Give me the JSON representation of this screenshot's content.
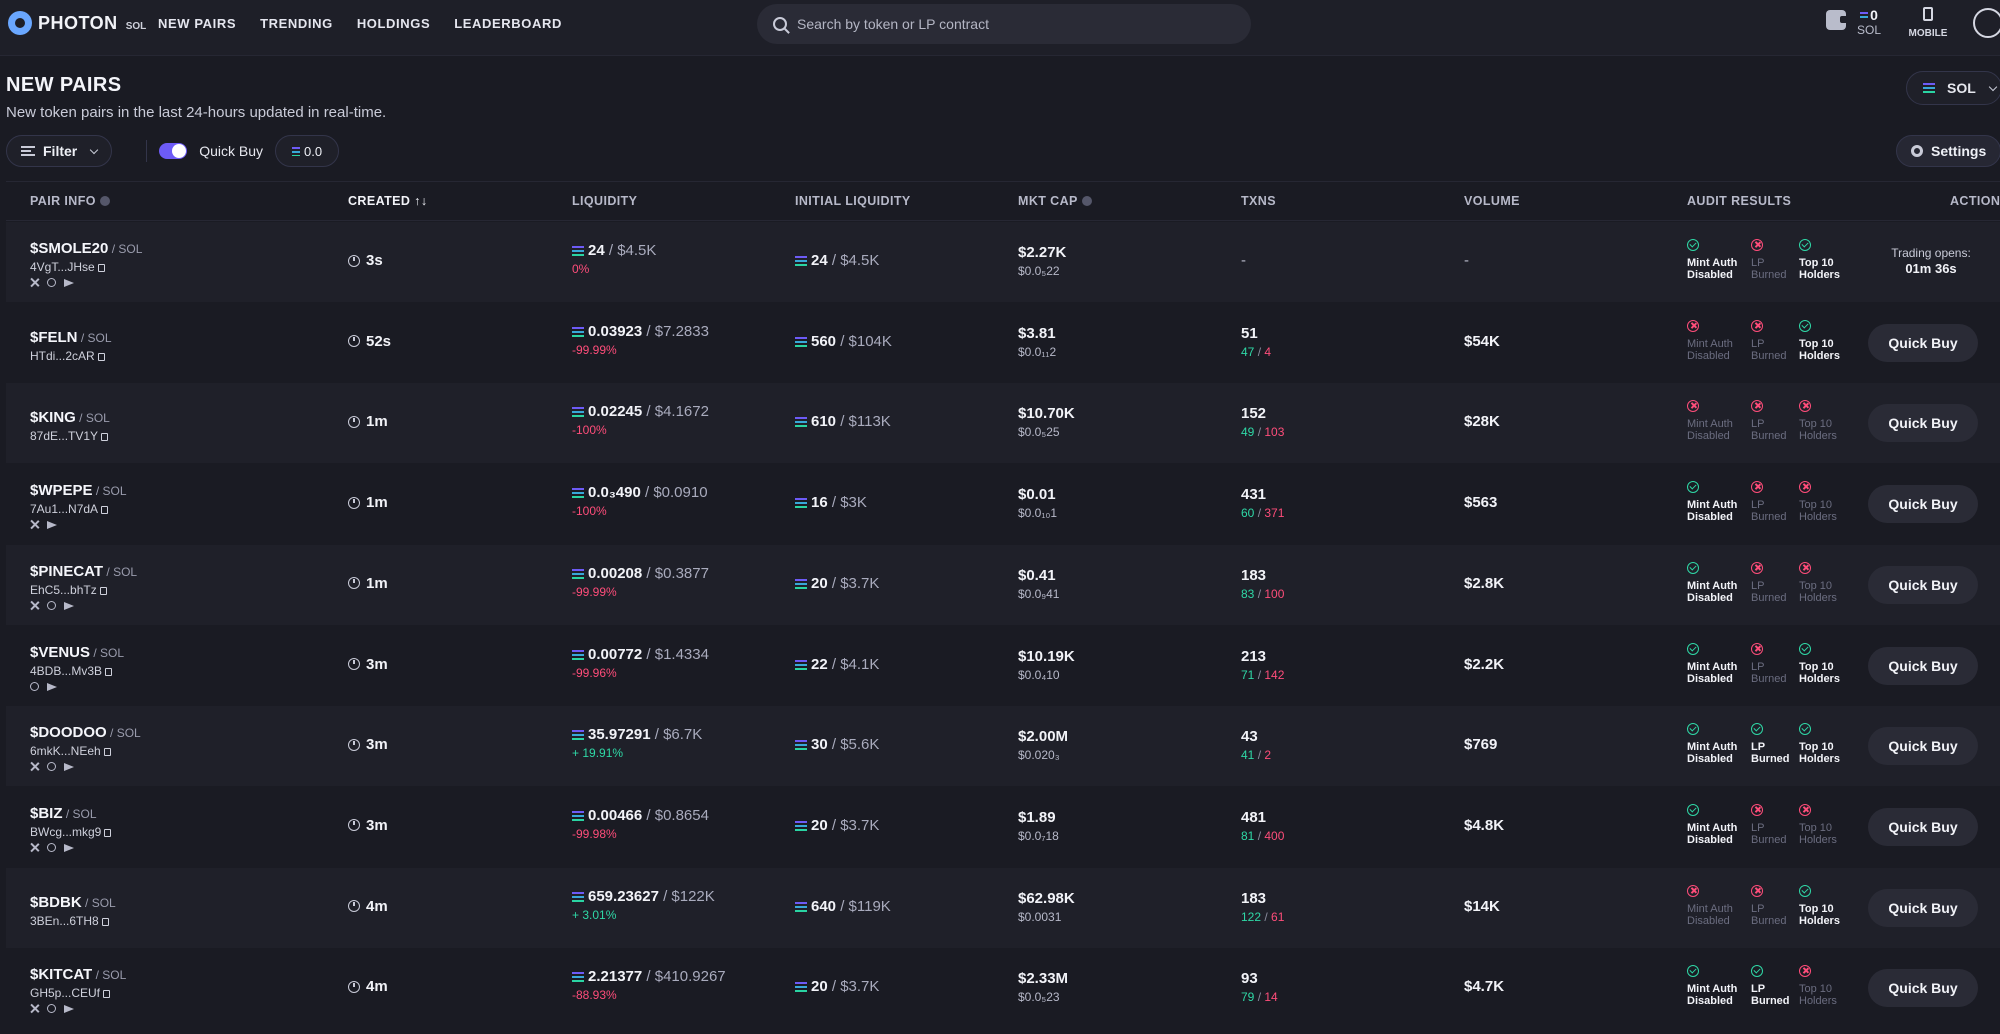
{
  "app": {
    "logo_text": "PHOTON",
    "logo_sub": "SOL"
  },
  "nav": [
    "NEW PAIRS",
    "TRENDING",
    "HOLDINGS",
    "LEADERBOARD"
  ],
  "search": {
    "placeholder": "Search by token or LP contract"
  },
  "wallet": {
    "balance": "0",
    "unit": "SOL"
  },
  "mobile_label": "MOBILE",
  "page": {
    "title": "NEW PAIRS",
    "description": "New token pairs in the last 24-hours updated in real-time.",
    "chain": "SOL"
  },
  "toolbar": {
    "filter_label": "Filter",
    "quick_buy_label": "Quick Buy",
    "quick_buy_amount": "0.0",
    "settings_label": "Settings"
  },
  "columns": {
    "pair_info": "PAIR INFO",
    "created": "CREATED",
    "created_sort": "↑↓",
    "liquidity": "LIQUIDITY",
    "initial_liquidity": "INITIAL LIQUIDITY",
    "mkt_cap": "MKT CAP",
    "txns": "TXNS",
    "volume": "VOLUME",
    "audit": "AUDIT RESULTS",
    "action": "ACTION"
  },
  "audit_labels": {
    "mint": [
      "Mint Auth",
      "Disabled"
    ],
    "lp": [
      "LP",
      "Burned"
    ],
    "top10": [
      "Top 10",
      "Holders"
    ]
  },
  "action_label": "Quick Buy",
  "rows": [
    {
      "name": "$SMOLE20",
      "quote": "/ SOL",
      "addr": "4VgT...JHse",
      "socials": [
        "x",
        "web",
        "tg"
      ],
      "created": "3s",
      "liq": "24",
      "liq_usd": "/ $4.5K",
      "liq_pct": "0%",
      "liq_pct_sign": "neg",
      "init": "24",
      "init_usd": "/ $4.5K",
      "mc": "$2.27K",
      "mc_price": "$0.0₅22",
      "txns": "-",
      "buys": "",
      "sells": "",
      "volume": "-",
      "audit": [
        "ok",
        "bad",
        "ok"
      ],
      "action": "trading",
      "trading_label": "Trading opens:",
      "trading_time": "01m 36s"
    },
    {
      "name": "$FELN",
      "quote": "/ SOL",
      "addr": "HTdi...2cAR",
      "socials": [],
      "created": "52s",
      "liq": "0.03923",
      "liq_usd": "/ $7.2833",
      "liq_pct": "-99.99%",
      "liq_pct_sign": "neg",
      "init": "560",
      "init_usd": "/ $104K",
      "mc": "$3.81",
      "mc_price": "$0.0₁₁2",
      "txns": "51",
      "buys": "47",
      "sells": "4",
      "volume": "$54K",
      "audit": [
        "bad",
        "bad",
        "ok"
      ],
      "action": "buy"
    },
    {
      "name": "$KING",
      "quote": "/ SOL",
      "addr": "87dE...TV1Y",
      "socials": [],
      "created": "1m",
      "liq": "0.02245",
      "liq_usd": "/ $4.1672",
      "liq_pct": "-100%",
      "liq_pct_sign": "neg",
      "init": "610",
      "init_usd": "/ $113K",
      "mc": "$10.70K",
      "mc_price": "$0.0₅25",
      "txns": "152",
      "buys": "49",
      "sells": "103",
      "volume": "$28K",
      "audit": [
        "bad",
        "bad",
        "bad"
      ],
      "action": "buy"
    },
    {
      "name": "$WPEPE",
      "quote": "/ SOL",
      "addr": "7Au1...N7dA",
      "socials": [
        "x",
        "tg"
      ],
      "created": "1m",
      "liq": "0.0₃490",
      "liq_usd": "/ $0.0910",
      "liq_pct": "-100%",
      "liq_pct_sign": "neg",
      "init": "16",
      "init_usd": "/ $3K",
      "mc": "$0.01",
      "mc_price": "$0.0₁₀1",
      "txns": "431",
      "buys": "60",
      "sells": "371",
      "volume": "$563",
      "audit": [
        "ok",
        "bad",
        "bad"
      ],
      "action": "buy"
    },
    {
      "name": "$PINECAT",
      "quote": "/ SOL",
      "addr": "EhC5...bhTz",
      "socials": [
        "x",
        "web",
        "tg"
      ],
      "created": "1m",
      "liq": "0.00208",
      "liq_usd": "/ $0.3877",
      "liq_pct": "-99.99%",
      "liq_pct_sign": "neg",
      "init": "20",
      "init_usd": "/ $3.7K",
      "mc": "$0.41",
      "mc_price": "$0.0₉41",
      "txns": "183",
      "buys": "83",
      "sells": "100",
      "volume": "$2.8K",
      "audit": [
        "ok",
        "bad",
        "bad"
      ],
      "action": "buy"
    },
    {
      "name": "$VENUS",
      "quote": "/ SOL",
      "addr": "4BDB...Mv3B",
      "socials": [
        "web",
        "tg"
      ],
      "created": "3m",
      "liq": "0.00772",
      "liq_usd": "/ $1.4334",
      "liq_pct": "-99.96%",
      "liq_pct_sign": "neg",
      "init": "22",
      "init_usd": "/ $4.1K",
      "mc": "$10.19K",
      "mc_price": "$0.0₄10",
      "txns": "213",
      "buys": "71",
      "sells": "142",
      "volume": "$2.2K",
      "audit": [
        "ok",
        "bad",
        "ok"
      ],
      "action": "buy"
    },
    {
      "name": "$DOODOO",
      "quote": "/ SOL",
      "addr": "6mkK...NEeh",
      "socials": [
        "x",
        "web",
        "tg"
      ],
      "created": "3m",
      "liq": "35.97291",
      "liq_usd": "/ $6.7K",
      "liq_pct": "+ 19.91%",
      "liq_pct_sign": "pos",
      "init": "30",
      "init_usd": "/ $5.6K",
      "mc": "$2.00M",
      "mc_price": "$0.020₃",
      "txns": "43",
      "buys": "41",
      "sells": "2",
      "volume": "$769",
      "audit": [
        "ok",
        "ok",
        "ok"
      ],
      "action": "buy"
    },
    {
      "name": "$BIZ",
      "quote": "/ SOL",
      "addr": "BWcg...mkg9",
      "socials": [
        "x",
        "web",
        "tg"
      ],
      "created": "3m",
      "liq": "0.00466",
      "liq_usd": "/ $0.8654",
      "liq_pct": "-99.98%",
      "liq_pct_sign": "neg",
      "init": "20",
      "init_usd": "/ $3.7K",
      "mc": "$1.89",
      "mc_price": "$0.0₇18",
      "txns": "481",
      "buys": "81",
      "sells": "400",
      "volume": "$4.8K",
      "audit": [
        "ok",
        "bad",
        "bad"
      ],
      "action": "buy"
    },
    {
      "name": "$BDBK",
      "quote": "/ SOL",
      "addr": "3BEn...6TH8",
      "socials": [],
      "created": "4m",
      "liq": "659.23627",
      "liq_usd": "/ $122K",
      "liq_pct": "+ 3.01%",
      "liq_pct_sign": "pos",
      "init": "640",
      "init_usd": "/ $119K",
      "mc": "$62.98K",
      "mc_price": "$0.0031",
      "txns": "183",
      "buys": "122",
      "sells": "61",
      "volume": "$14K",
      "audit": [
        "bad",
        "bad",
        "ok"
      ],
      "action": "buy"
    },
    {
      "name": "$KITCAT",
      "quote": "/ SOL",
      "addr": "GH5p...CEUf",
      "socials": [
        "x",
        "web",
        "tg"
      ],
      "created": "4m",
      "liq": "2.21377",
      "liq_usd": "/ $410.9267",
      "liq_pct": "-88.93%",
      "liq_pct_sign": "neg",
      "init": "20",
      "init_usd": "/ $3.7K",
      "mc": "$2.33M",
      "mc_price": "$0.0₅23",
      "txns": "93",
      "buys": "79",
      "sells": "14",
      "volume": "$4.7K",
      "audit": [
        "ok",
        "ok",
        "bad"
      ],
      "action": "buy"
    }
  ]
}
